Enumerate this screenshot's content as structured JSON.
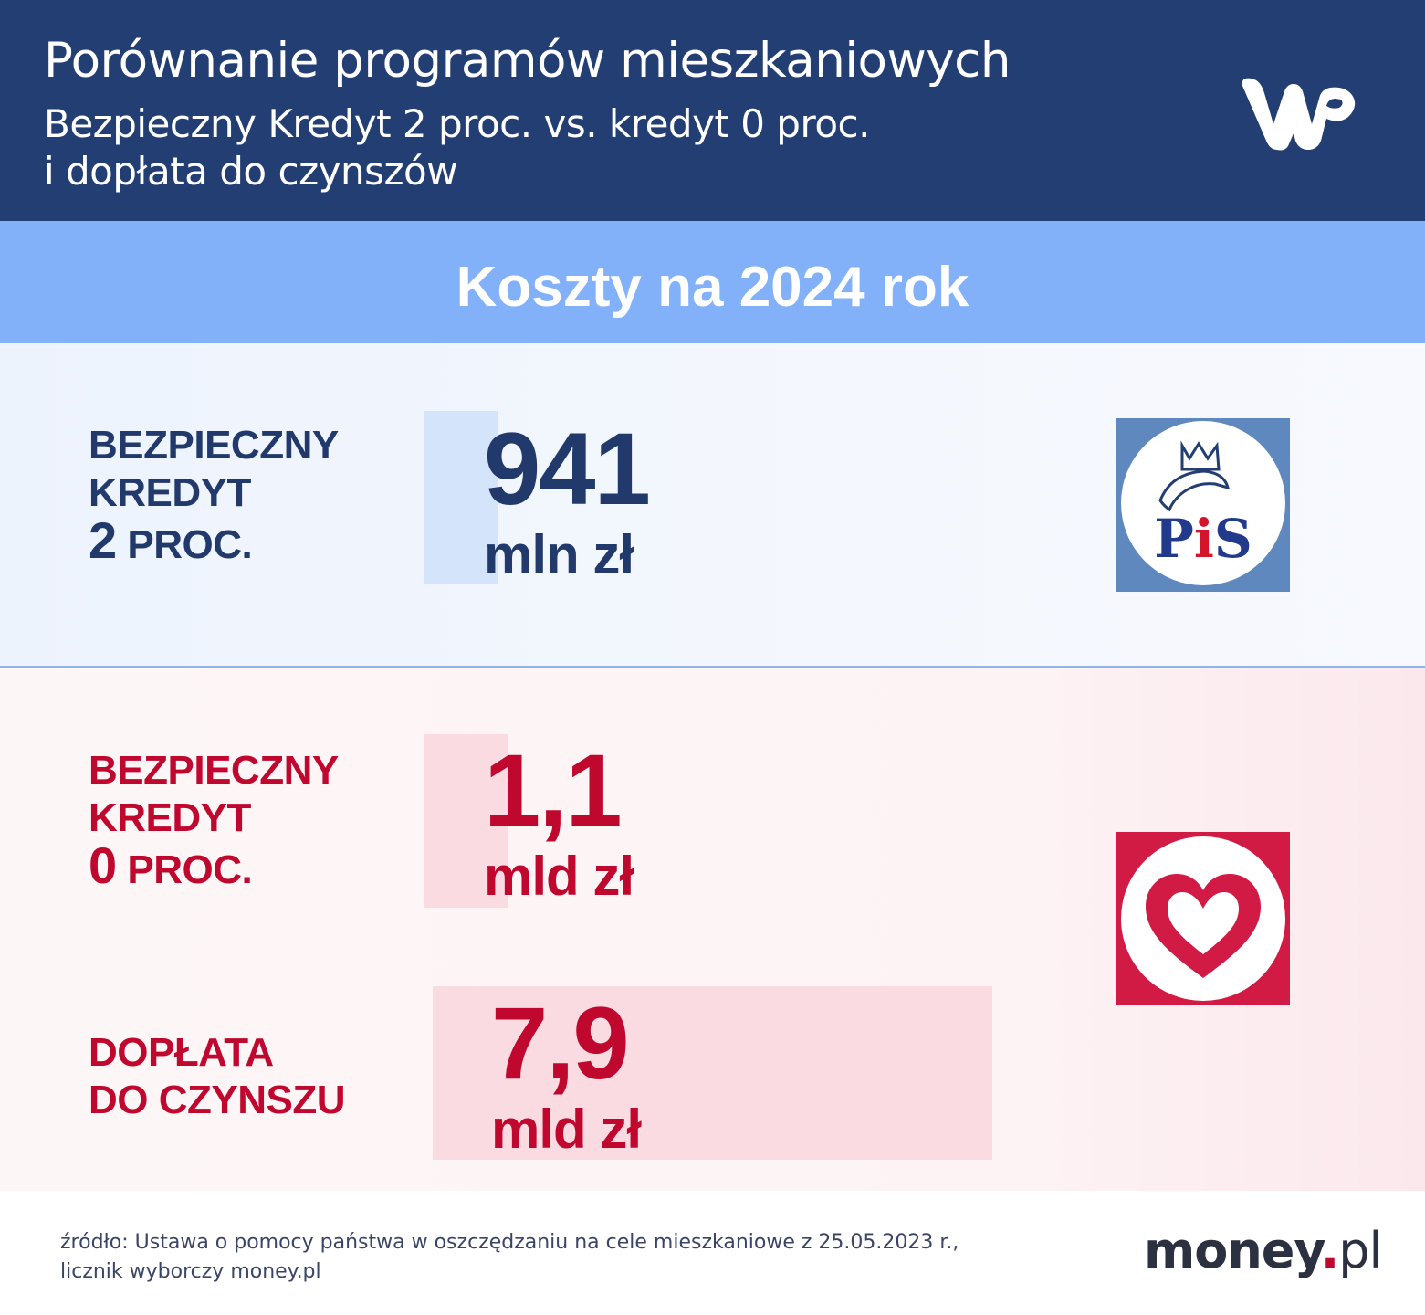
{
  "header": {
    "title": "Porównanie programów mieszkaniowych",
    "subtitle_line1": "Bezpieczny Kredyt 2 proc. vs. kredyt 0 proc.",
    "subtitle_line2": "i dopłata do czynszów"
  },
  "band": {
    "title": "Koszty na 2024 rok"
  },
  "colors": {
    "header_bg": "#233e73",
    "band_bg": "#82b1fa",
    "pis_blue": "#223a6b",
    "ko_red": "#c0082f",
    "pis_bar": "#d4e4fb",
    "ko_bar": "#fadbe2"
  },
  "programs": [
    {
      "label_line1": "BEZPIECZNY",
      "label_line2": "KREDYT",
      "label_num": "2",
      "label_suffix": " PROC.",
      "value_text": "941",
      "unit_text": "mln zł",
      "party_icon": "pis-logo",
      "party_logo_text": "PiS"
    },
    {
      "label_line1": "BEZPIECZNY",
      "label_line2": "KREDYT",
      "label_num": "0",
      "label_suffix": " PROC.",
      "value_text": "1,1",
      "unit_text": "mld zł",
      "party_icon": "heart-logo"
    },
    {
      "label_line1": "DOPŁATA",
      "label_line2": "DO CZYNSZU",
      "value_text": "7,9",
      "unit_text": "mld zł"
    }
  ],
  "chart_data": {
    "type": "bar",
    "title": "Koszty na 2024 rok",
    "categories": [
      "BEZPIECZNY KREDYT 2 PROC.",
      "BEZPIECZNY KREDYT 0 PROC.",
      "DOPŁATA DO CZYNSZU"
    ],
    "values": [
      0.941,
      1.1,
      7.9
    ],
    "unit": "mld zł",
    "value_labels": [
      "941 mln zł",
      "1,1 mld zł",
      "7,9 mld zł"
    ]
  },
  "footer": {
    "source_line1": "źródło: Ustawa o pomocy państwa w oszczędzaniu na cele mieszkaniowe z 25.05.2023 r.,",
    "source_line2": "licznik wyborczy money.pl",
    "logo_main": "money",
    "logo_dot": ".",
    "logo_suffix": "pl"
  }
}
